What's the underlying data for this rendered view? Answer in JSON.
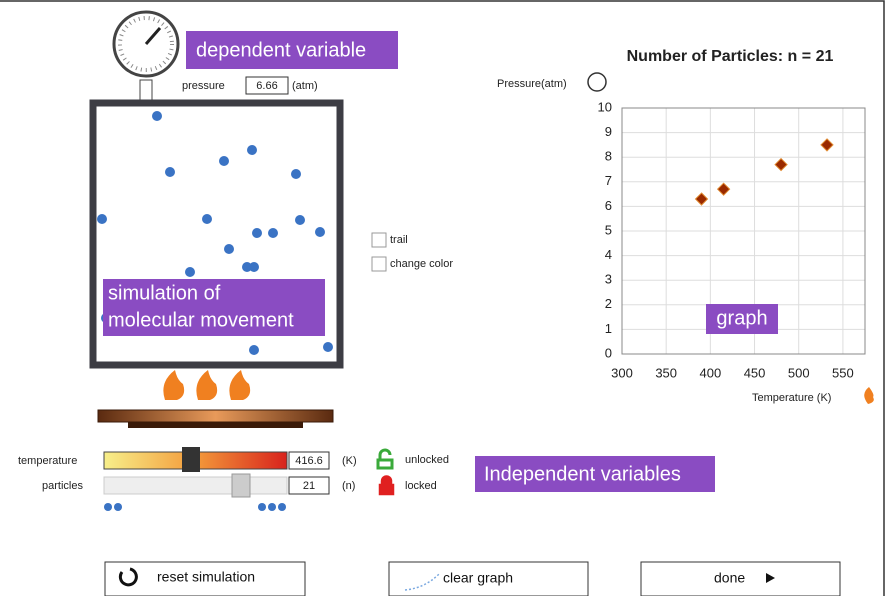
{
  "dependent_label": "dependent variable",
  "pressure": {
    "label": "pressure",
    "value": "6.66",
    "unit": "(atm)"
  },
  "simulation_label": [
    "simulation of",
    "molecular movement"
  ],
  "options": [
    "trail",
    "change color"
  ],
  "graph": {
    "type": "scatter",
    "title": "Number of Particles: n = 21",
    "y_label": "Pressure(atm)",
    "x_label": "Temperature (K)",
    "tag": "graph",
    "x": [
      390,
      415,
      480,
      532
    ],
    "y": [
      6.3,
      6.7,
      7.7,
      8.5
    ],
    "color": "#9a2a00",
    "xlim": [
      300,
      575
    ],
    "xticks": [
      300,
      350,
      400,
      450,
      500,
      550
    ],
    "ylim": [
      0,
      10
    ],
    "yticks": [
      0,
      1,
      2,
      3,
      4,
      5,
      6,
      7,
      8,
      9,
      10
    ],
    "grid": true
  },
  "controls": {
    "temperature": {
      "label": "temperature",
      "value": "416.6",
      "unit": "(K)",
      "lock": "unlocked"
    },
    "particles": {
      "label": "particles",
      "value": "21",
      "unit": "(n)",
      "lock": "locked"
    }
  },
  "independent_label": "Independent variables",
  "buttons": [
    "reset simulation",
    "clear graph",
    "done"
  ]
}
